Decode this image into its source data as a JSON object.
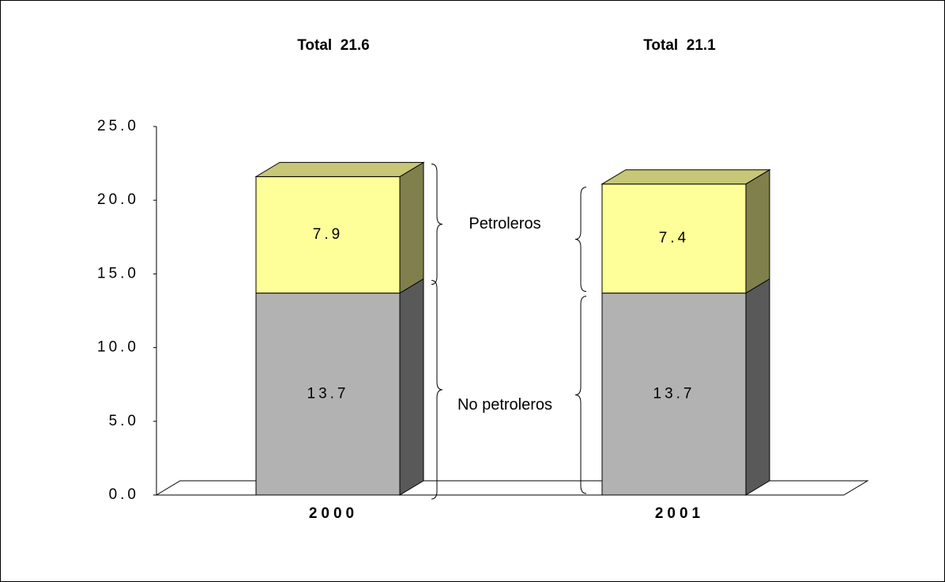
{
  "chart_data": {
    "type": "stacked_bar_3d",
    "categories": [
      "2000",
      "2001"
    ],
    "series": [
      {
        "name": "No petroleros",
        "color": "#b2b2b2",
        "values": [
          13.7,
          13.7
        ]
      },
      {
        "name": "Petroleros",
        "color": "#ffff99",
        "values": [
          7.9,
          7.4
        ]
      }
    ],
    "annotations": [
      "Total  21.6",
      "Total  21.1"
    ],
    "ylim": [
      0,
      25
    ],
    "yticks": [
      {
        "value": 0,
        "label": "0.0"
      },
      {
        "value": 5,
        "label": "5.0"
      },
      {
        "value": 10,
        "label": "10.0"
      },
      {
        "value": 15,
        "label": "15.0"
      },
      {
        "value": 20,
        "label": "20.0"
      },
      {
        "value": 25,
        "label": "25.0"
      }
    ]
  }
}
